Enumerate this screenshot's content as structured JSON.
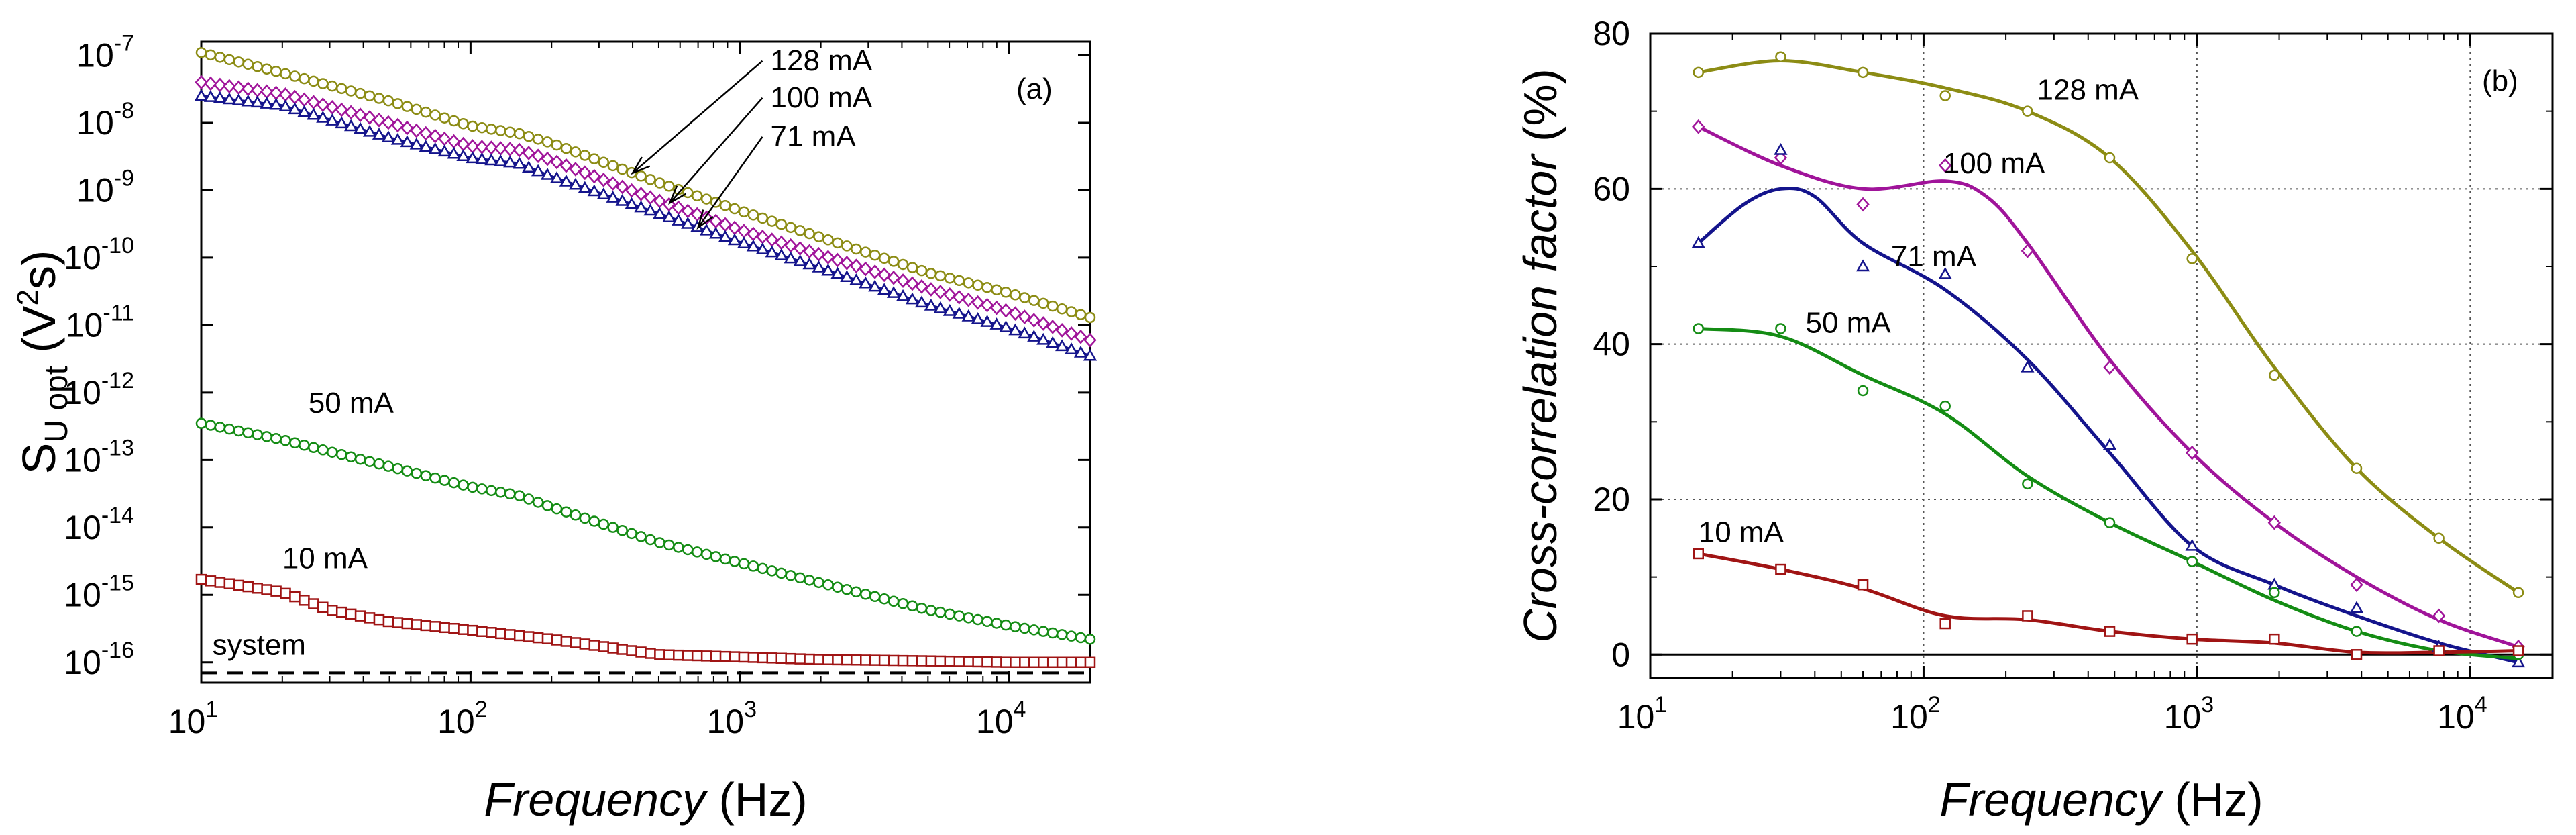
{
  "chart_data": [
    {
      "panel": "(a)",
      "type": "line",
      "xscale": "log",
      "yscale": "log",
      "xlim": [
        10,
        20000
      ],
      "ylim": [
        5e-17,
        1.6e-07
      ],
      "xlabel_italic": "Frequency",
      "xlabel_unit": "(Hz)",
      "ylabel_main": "S",
      "ylabel_sub": "U opt",
      "ylabel_unit": "(V",
      "ylabel_unit_sup": "2",
      "ylabel_unit_end": "s)",
      "x_ticks": [
        {
          "value": 10,
          "base": "10",
          "exp": "1"
        },
        {
          "value": 100,
          "base": "10",
          "exp": "2"
        },
        {
          "value": 1000,
          "base": "10",
          "exp": "3"
        },
        {
          "value": 10000,
          "base": "10",
          "exp": "4"
        }
      ],
      "y_ticks": [
        {
          "value": 1e-07,
          "base": "10",
          "exp": "-7"
        },
        {
          "value": 1e-08,
          "base": "10",
          "exp": "-8"
        },
        {
          "value": 1e-09,
          "base": "10",
          "exp": "-9"
        },
        {
          "value": 1e-10,
          "base": "10",
          "exp": "-10"
        },
        {
          "value": 1e-11,
          "base": "10",
          "exp": "-11"
        },
        {
          "value": 1e-12,
          "base": "10",
          "exp": "-12"
        },
        {
          "value": 1e-13,
          "base": "10",
          "exp": "-13"
        },
        {
          "value": 1e-14,
          "base": "10",
          "exp": "-14"
        },
        {
          "value": 1e-15,
          "base": "10",
          "exp": "-15"
        },
        {
          "value": 1e-16,
          "base": "10",
          "exp": "-16"
        }
      ],
      "series": [
        {
          "name": "128 mA",
          "color": "#8c8c14",
          "marker": "circle",
          "points": [
            [
              10,
              1.1e-07
            ],
            [
              20,
              5.5e-08
            ],
            [
              50,
              2.1e-08
            ],
            [
              100,
              9e-09
            ],
            [
              150,
              7e-09
            ],
            [
              200,
              5e-09
            ],
            [
              500,
              1.3e-09
            ],
            [
              1000,
              5e-10
            ],
            [
              2000,
              2e-10
            ],
            [
              5000,
              6e-11
            ],
            [
              10000,
              3e-11
            ],
            [
              20000,
              1.3e-11
            ]
          ]
        },
        {
          "name": "100 mA",
          "color": "#a0149a",
          "marker": "diamond",
          "points": [
            [
              10,
              4e-08
            ],
            [
              20,
              2.7e-08
            ],
            [
              50,
              1e-08
            ],
            [
              100,
              4.5e-09
            ],
            [
              150,
              4e-09
            ],
            [
              200,
              2.8e-09
            ],
            [
              500,
              7e-10
            ],
            [
              1000,
              2.6e-10
            ],
            [
              2000,
              1.1e-10
            ],
            [
              5000,
              3.5e-11
            ],
            [
              10000,
              1.6e-11
            ],
            [
              20000,
              6e-12
            ]
          ]
        },
        {
          "name": "71 mA",
          "color": "#14148c",
          "marker": "triangle",
          "points": [
            [
              10,
              2.5e-08
            ],
            [
              20,
              1.8e-08
            ],
            [
              50,
              6e-09
            ],
            [
              100,
              3e-09
            ],
            [
              150,
              2.5e-09
            ],
            [
              200,
              1.6e-09
            ],
            [
              500,
              4.5e-10
            ],
            [
              1000,
              1.7e-10
            ],
            [
              2000,
              7e-11
            ],
            [
              5000,
              2e-11
            ],
            [
              10000,
              9e-12
            ],
            [
              20000,
              3.5e-12
            ]
          ]
        },
        {
          "name": "50 mA",
          "color": "#148c14",
          "marker": "circle",
          "points": [
            [
              10,
              3.5e-13
            ],
            [
              20,
              2e-13
            ],
            [
              50,
              8e-14
            ],
            [
              100,
              4e-14
            ],
            [
              150,
              3e-14
            ],
            [
              200,
              2e-14
            ],
            [
              500,
              6e-15
            ],
            [
              1000,
              3e-15
            ],
            [
              2000,
              1.5e-15
            ],
            [
              5000,
              6e-16
            ],
            [
              10000,
              3.5e-16
            ],
            [
              20000,
              2.2e-16
            ]
          ]
        },
        {
          "name": "10 mA",
          "color": "#a01414",
          "marker": "square",
          "points": [
            [
              10,
              1.7e-15
            ],
            [
              20,
              1.1e-15
            ],
            [
              30,
              6e-16
            ],
            [
              50,
              4e-16
            ],
            [
              100,
              3e-16
            ],
            [
              200,
              2.2e-16
            ],
            [
              500,
              1.3e-16
            ],
            [
              1000,
              1.2e-16
            ],
            [
              2000,
              1.1e-16
            ],
            [
              5000,
              1.05e-16
            ],
            [
              10000,
              1e-16
            ],
            [
              20000,
              1e-16
            ]
          ]
        },
        {
          "name": "system",
          "color": "#000000",
          "marker": "none",
          "dashed": true,
          "points": [
            [
              10,
              7e-17
            ],
            [
              20000,
              7e-17
            ]
          ]
        }
      ],
      "annotations": [
        {
          "text": "128 mA",
          "x": 1300,
          "y": 6e-08,
          "arrow_to": [
            400,
            1.8e-09
          ]
        },
        {
          "text": "100 mA",
          "x": 1300,
          "y": 1.7e-08,
          "arrow_to": [
            550,
            6.5e-10
          ]
        },
        {
          "text": "71 mA",
          "x": 1300,
          "y": 4.5e-09,
          "arrow_to": [
            700,
            2.8e-10
          ]
        },
        {
          "text": "50 mA",
          "x": 25,
          "y": 5e-13
        },
        {
          "text": "10 mA",
          "x": 20,
          "y": 2.5e-15
        },
        {
          "text": "system",
          "x": 11,
          "y": 1.3e-16
        }
      ],
      "panel_label": "(a)"
    },
    {
      "panel": "(b)",
      "type": "line",
      "xscale": "log",
      "yscale": "linear",
      "xlim": [
        10,
        20000
      ],
      "ylim": [
        -3,
        80
      ],
      "xlabel_italic": "Frequency",
      "xlabel_unit": "(Hz)",
      "ylabel_italic": "Cross-correlation factor",
      "ylabel_unit": "(%)",
      "grid": true,
      "x_ticks": [
        {
          "value": 10,
          "base": "10",
          "exp": "1"
        },
        {
          "value": 100,
          "base": "10",
          "exp": "2"
        },
        {
          "value": 1000,
          "base": "10",
          "exp": "3"
        },
        {
          "value": 10000,
          "base": "10",
          "exp": "4"
        }
      ],
      "y_ticks": [
        {
          "value": 0,
          "label": "0"
        },
        {
          "value": 20,
          "label": "20"
        },
        {
          "value": 40,
          "label": "40"
        },
        {
          "value": 60,
          "label": "60"
        },
        {
          "value": 80,
          "label": "80"
        }
      ],
      "series": [
        {
          "name": "128 mA",
          "color": "#8c8c14",
          "marker": "circle",
          "points": [
            [
              15,
              75
            ],
            [
              30,
              77
            ],
            [
              60,
              75
            ],
            [
              120,
              72
            ],
            [
              240,
              70
            ],
            [
              480,
              64
            ],
            [
              960,
              51
            ],
            [
              1920,
              36
            ],
            [
              3840,
              24
            ],
            [
              7680,
              15
            ],
            [
              15000,
              8
            ]
          ]
        },
        {
          "name": "100 mA",
          "color": "#a0149a",
          "marker": "diamond",
          "points": [
            [
              15,
              68
            ],
            [
              30,
              64
            ],
            [
              60,
              58
            ],
            [
              120,
              63
            ],
            [
              240,
              52
            ],
            [
              480,
              37
            ],
            [
              960,
              26
            ],
            [
              1920,
              17
            ],
            [
              3840,
              9
            ],
            [
              7680,
              5
            ],
            [
              15000,
              1
            ]
          ]
        },
        {
          "name": "71 mA",
          "color": "#14148c",
          "marker": "triangle",
          "points": [
            [
              15,
              53
            ],
            [
              30,
              65
            ],
            [
              60,
              50
            ],
            [
              120,
              49
            ],
            [
              240,
              37
            ],
            [
              480,
              27
            ],
            [
              960,
              14
            ],
            [
              1920,
              9
            ],
            [
              3840,
              6
            ],
            [
              7680,
              1
            ],
            [
              15000,
              -1
            ]
          ]
        },
        {
          "name": "50 mA",
          "color": "#148c14",
          "marker": "circle",
          "points": [
            [
              15,
              42
            ],
            [
              30,
              42
            ],
            [
              60,
              34
            ],
            [
              120,
              32
            ],
            [
              240,
              22
            ],
            [
              480,
              17
            ],
            [
              960,
              12
            ],
            [
              1920,
              8
            ],
            [
              3840,
              3
            ],
            [
              7680,
              0.5
            ],
            [
              15000,
              0
            ]
          ]
        },
        {
          "name": "10 mA",
          "color": "#a01414",
          "marker": "square",
          "points": [
            [
              15,
              13
            ],
            [
              30,
              11
            ],
            [
              60,
              9
            ],
            [
              120,
              4
            ],
            [
              240,
              5
            ],
            [
              480,
              3
            ],
            [
              960,
              2
            ],
            [
              1920,
              2
            ],
            [
              3840,
              0
            ],
            [
              7680,
              0.5
            ],
            [
              15000,
              0.5
            ]
          ]
        }
      ],
      "curves": [
        {
          "color": "#8c8c14",
          "points": [
            [
              15,
              75
            ],
            [
              30,
              76.5
            ],
            [
              60,
              75
            ],
            [
              120,
              73
            ],
            [
              240,
              70
            ],
            [
              480,
              64
            ],
            [
              960,
              52
            ],
            [
              1920,
              37
            ],
            [
              3840,
              24
            ],
            [
              7680,
              15
            ],
            [
              15000,
              8
            ]
          ]
        },
        {
          "color": "#a0149a",
          "points": [
            [
              15,
              68
            ],
            [
              30,
              63
            ],
            [
              60,
              60
            ],
            [
              120,
              61
            ],
            [
              170,
              59
            ],
            [
              240,
              53
            ],
            [
              480,
              38
            ],
            [
              960,
              26
            ],
            [
              1920,
              17
            ],
            [
              3840,
              10
            ],
            [
              7680,
              4.5
            ],
            [
              15000,
              1
            ]
          ]
        },
        {
          "color": "#14148c",
          "points": [
            [
              15,
              53
            ],
            [
              22,
              58
            ],
            [
              30,
              60
            ],
            [
              40,
              59
            ],
            [
              60,
              53
            ],
            [
              120,
              47
            ],
            [
              240,
              38
            ],
            [
              480,
              26
            ],
            [
              960,
              14
            ],
            [
              1920,
              9
            ],
            [
              3840,
              5
            ],
            [
              7680,
              1.5
            ],
            [
              15000,
              -1
            ]
          ]
        },
        {
          "color": "#148c14",
          "points": [
            [
              15,
              42
            ],
            [
              30,
              41
            ],
            [
              60,
              36
            ],
            [
              120,
              31
            ],
            [
              240,
              23
            ],
            [
              480,
              17
            ],
            [
              960,
              12
            ],
            [
              1920,
              7
            ],
            [
              3840,
              3
            ],
            [
              7680,
              0.5
            ],
            [
              15000,
              -0.5
            ]
          ]
        },
        {
          "color": "#a01414",
          "points": [
            [
              15,
              13
            ],
            [
              30,
              11
            ],
            [
              60,
              8.5
            ],
            [
              120,
              5
            ],
            [
              240,
              4.5
            ],
            [
              480,
              3
            ],
            [
              960,
              2
            ],
            [
              1920,
              1.5
            ],
            [
              3840,
              0.3
            ],
            [
              7680,
              0.3
            ],
            [
              15000,
              0.5
            ]
          ]
        }
      ],
      "annotations": [
        {
          "text": "128 mA",
          "x": 260,
          "y": 71.5
        },
        {
          "text": "100 mA",
          "x": 118,
          "y": 62
        },
        {
          "text": "71 mA",
          "x": 76,
          "y": 50
        },
        {
          "text": "50 mA",
          "x": 37,
          "y": 41.5
        },
        {
          "text": "10 mA",
          "x": 15,
          "y": 14.5
        }
      ],
      "panel_label": "(b)"
    }
  ]
}
